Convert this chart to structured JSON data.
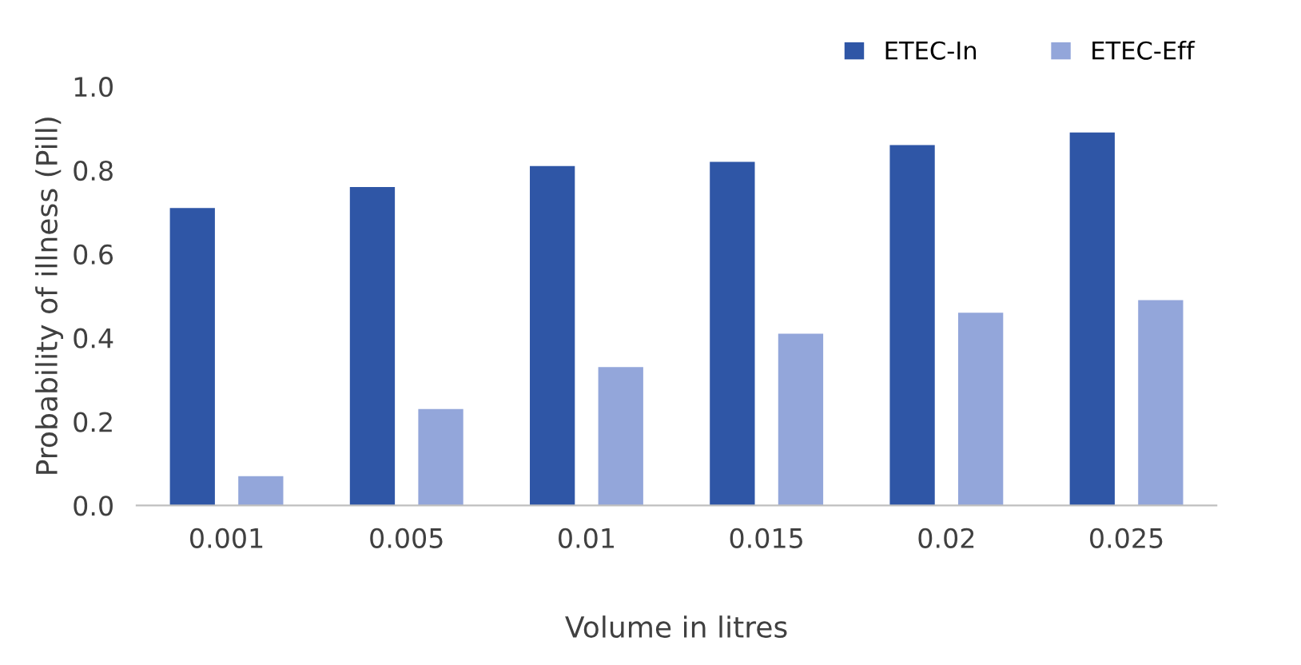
{
  "chart_data": {
    "type": "bar",
    "xlabel": "Volume in litres",
    "ylabel": "Probability of illness (Pill)",
    "categories": [
      "0.001",
      "0.005",
      "0.01",
      "0.015",
      "0.02",
      "0.025"
    ],
    "series": [
      {
        "name": "ETEC-In",
        "color": "#2f56a6",
        "values": [
          0.71,
          0.76,
          0.81,
          0.82,
          0.86,
          0.89
        ]
      },
      {
        "name": "ETEC-Eff",
        "color": "#93a6da",
        "values": [
          0.07,
          0.23,
          0.33,
          0.41,
          0.46,
          0.49
        ]
      }
    ],
    "ylim": [
      0,
      1.0
    ],
    "yticks": [
      {
        "value": 0,
        "label": "0.0"
      },
      {
        "value": 0.2,
        "label": "0.2"
      },
      {
        "value": 0.4,
        "label": "0.4"
      },
      {
        "value": 0.6,
        "label": "0.6"
      },
      {
        "value": 0.8,
        "label": "0.8"
      },
      {
        "value": 1.0,
        "label": "1.0"
      }
    ],
    "grid": false,
    "legend": "top right"
  }
}
